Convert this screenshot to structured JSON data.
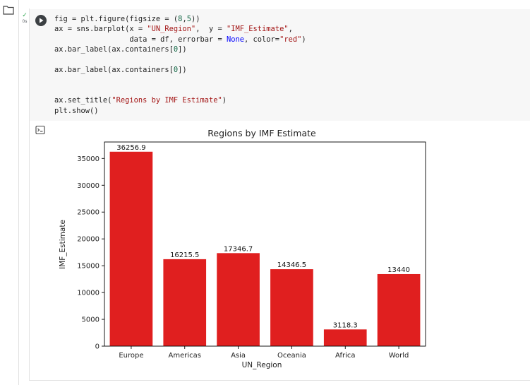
{
  "sidebar": {
    "folder_icon": "folder-icon"
  },
  "cell": {
    "status_check": "✓",
    "exec_time": "0s",
    "run_icon": "play-icon",
    "output_toggle_icon": "output-toggle-icon",
    "code_lines": [
      "fig = plt.figure(figsize = (8,5))",
      "ax = sns.barplot(x = \"UN_Region\",  y = \"IMF_Estimate\",",
      "                 data = df, errorbar = None, color=\"red\")",
      "ax.bar_label(ax.containers[0])",
      "",
      "ax.bar_label(ax.containers[0])",
      "",
      "",
      "ax.set_title(\"Regions by IMF Estimate\")",
      "plt.show()"
    ]
  },
  "chart_data": {
    "type": "bar",
    "title": "Regions by IMF Estimate",
    "xlabel": "UN_Region",
    "ylabel": "IMF_Estimate",
    "categories": [
      "Europe",
      "Americas",
      "Asia",
      "Oceania",
      "Africa",
      "World"
    ],
    "values": [
      36256.9,
      16215.5,
      17346.7,
      14346.5,
      3118.3,
      13440
    ],
    "value_labels": [
      "36256.9",
      "16215.5",
      "17346.7",
      "14346.5",
      "3118.3",
      "13440"
    ],
    "ylim": [
      0,
      38070
    ],
    "yticks": [
      0,
      5000,
      10000,
      15000,
      20000,
      25000,
      30000,
      35000
    ],
    "bar_color": "#e01f1f",
    "grid": false
  }
}
